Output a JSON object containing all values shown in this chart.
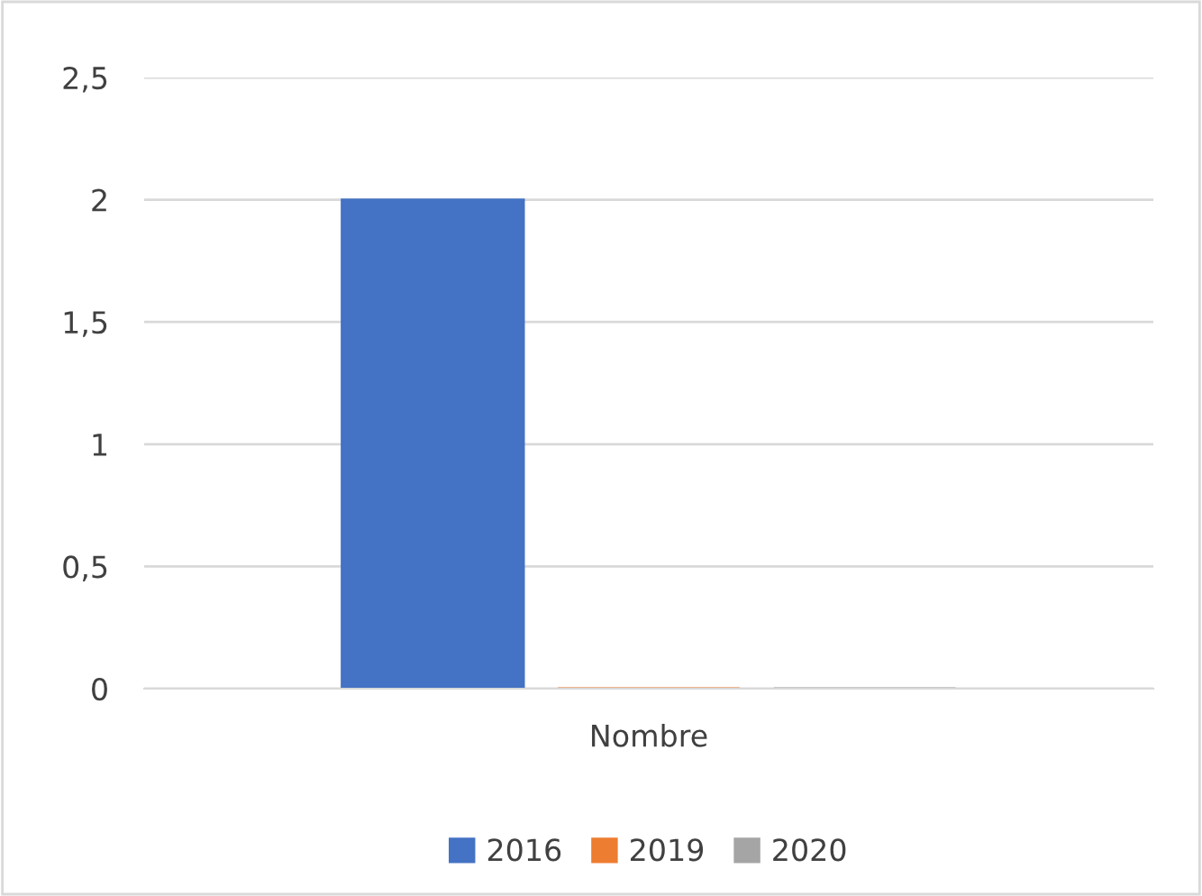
{
  "chart_data": {
    "type": "bar",
    "categories": [
      "Nombre"
    ],
    "series": [
      {
        "name": "2016",
        "color": "#4472c4",
        "values": [
          2
        ]
      },
      {
        "name": "2019",
        "color": "#ed7d31",
        "values": [
          0
        ]
      },
      {
        "name": "2020",
        "color": "#a5a5a5",
        "values": [
          0
        ]
      }
    ],
    "ylim": [
      0,
      2.5
    ],
    "yticks": [
      0,
      {
        "value": 0.5,
        "label": "0,5"
      },
      1,
      {
        "value": 1.5,
        "label": "1,5"
      },
      2,
      {
        "value": 2.5,
        "label": "2,5"
      }
    ],
    "grid": "y",
    "legend": "bottom"
  }
}
